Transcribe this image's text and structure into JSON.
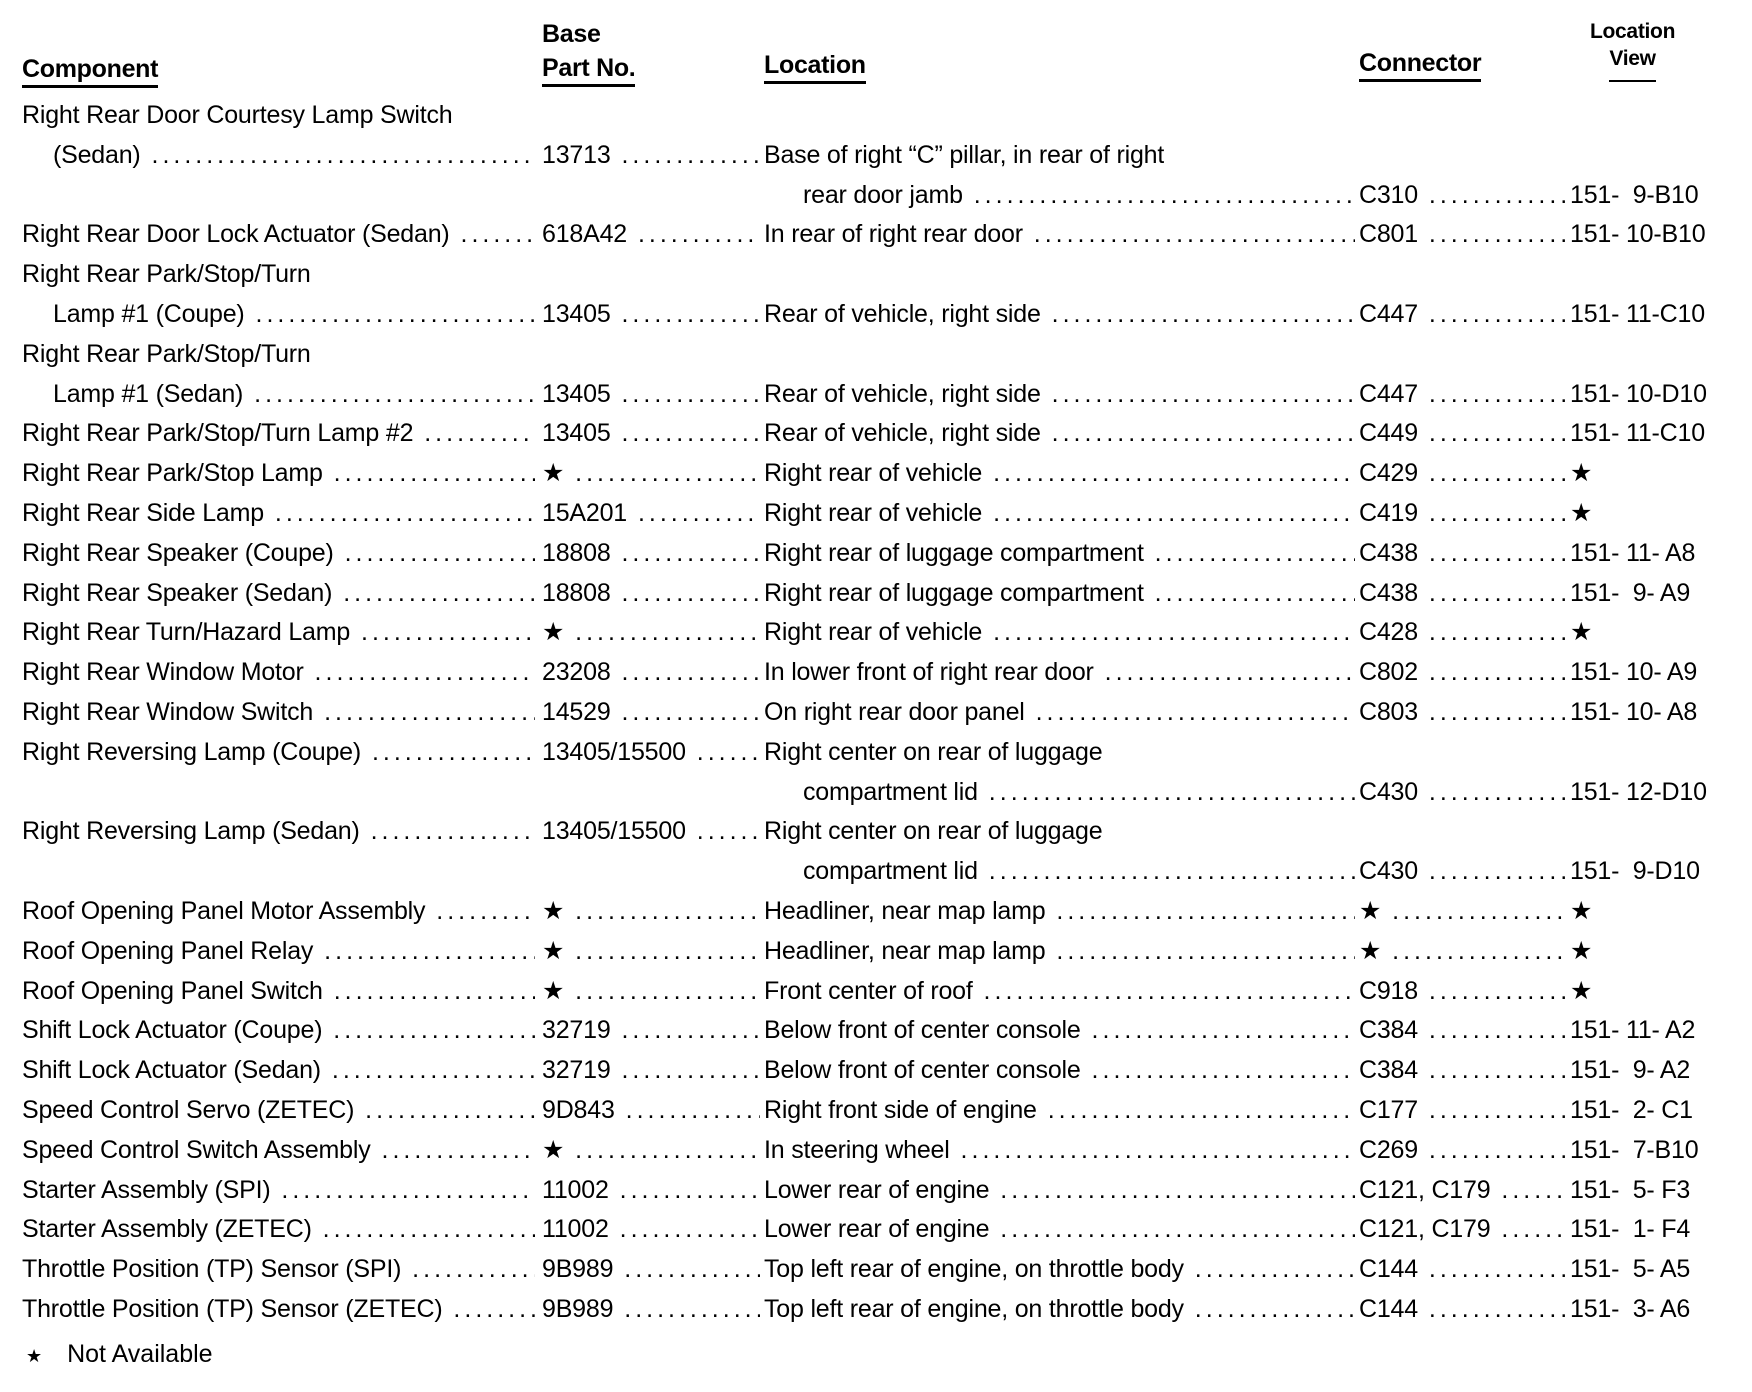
{
  "headers": {
    "component": "Component",
    "part_line1": "Base",
    "part_line2": "Part No.",
    "location": "Location",
    "connector": "Connector",
    "view_line1": "Location",
    "view_line2": "View"
  },
  "rows": [
    {
      "component": [
        "Right Rear Door Courtesy Lamp Switch",
        "(Sedan)"
      ],
      "part": "13713",
      "location": [
        "Base of right “C” pillar, in rear of right",
        "rear door jamb"
      ],
      "connector": "C310",
      "view": "151-  9-B10"
    },
    {
      "component": [
        "Right Rear Door Lock Actuator (Sedan)"
      ],
      "part": "618A42",
      "location": [
        "In rear of right rear door"
      ],
      "connector": "C801",
      "view": "151- 10-B10"
    },
    {
      "component": [
        "Right Rear Park/Stop/Turn",
        "Lamp #1 (Coupe)"
      ],
      "part": "13405",
      "location": [
        "Rear of vehicle, right side"
      ],
      "connector": "C447",
      "view": "151- 11-C10"
    },
    {
      "component": [
        "Right Rear Park/Stop/Turn",
        "Lamp #1 (Sedan)"
      ],
      "part": "13405",
      "location": [
        "Rear of vehicle, right side"
      ],
      "connector": "C447",
      "view": "151- 10-D10"
    },
    {
      "component": [
        "Right Rear Park/Stop/Turn Lamp #2"
      ],
      "part": "13405",
      "location": [
        "Rear of vehicle, right side"
      ],
      "connector": "C449",
      "view": "151- 11-C10"
    },
    {
      "component": [
        "Right Rear Park/Stop Lamp"
      ],
      "part": "★",
      "location": [
        "Right rear of vehicle"
      ],
      "connector": "C429",
      "view": "★"
    },
    {
      "component": [
        "Right Rear Side Lamp"
      ],
      "part": "15A201",
      "location": [
        "Right rear of vehicle"
      ],
      "connector": "C419",
      "view": "★"
    },
    {
      "component": [
        "Right Rear Speaker (Coupe)"
      ],
      "part": "18808",
      "location": [
        "Right rear of luggage compartment"
      ],
      "connector": "C438",
      "view": "151- 11- A8"
    },
    {
      "component": [
        "Right Rear Speaker (Sedan)"
      ],
      "part": "18808",
      "location": [
        "Right rear of luggage compartment"
      ],
      "connector": "C438",
      "view": "151-  9- A9"
    },
    {
      "component": [
        "Right Rear Turn/Hazard Lamp"
      ],
      "part": "★",
      "location": [
        "Right rear of vehicle"
      ],
      "connector": "C428",
      "view": "★"
    },
    {
      "component": [
        "Right Rear Window Motor"
      ],
      "part": "23208",
      "location": [
        "In lower front of right rear door"
      ],
      "connector": "C802",
      "view": "151- 10- A9"
    },
    {
      "component": [
        "Right Rear Window Switch"
      ],
      "part": "14529",
      "location": [
        "On right rear door panel"
      ],
      "connector": "C803",
      "view": "151- 10- A8"
    },
    {
      "component": [
        "Right Reversing Lamp (Coupe)"
      ],
      "part": "13405/15500",
      "location": [
        "Right center on rear of luggage",
        "compartment lid"
      ],
      "connector": "C430",
      "view": "151- 12-D10"
    },
    {
      "component": [
        "Right Reversing Lamp (Sedan)"
      ],
      "part": "13405/15500",
      "location": [
        "Right center on rear of luggage",
        "compartment lid"
      ],
      "connector": "C430",
      "view": "151-  9-D10"
    },
    {
      "component": [
        "Roof Opening Panel Motor Assembly"
      ],
      "part": "★",
      "location": [
        "Headliner, near map lamp"
      ],
      "connector": "★",
      "view": "★"
    },
    {
      "component": [
        "Roof Opening Panel Relay"
      ],
      "part": "★",
      "location": [
        "Headliner, near map lamp"
      ],
      "connector": "★",
      "view": "★"
    },
    {
      "component": [
        "Roof Opening Panel Switch"
      ],
      "part": "★",
      "location": [
        "Front center of roof"
      ],
      "connector": "C918",
      "view": "★"
    },
    {
      "component": [
        "Shift Lock Actuator (Coupe)"
      ],
      "part": "32719",
      "location": [
        "Below front of center console"
      ],
      "connector": "C384",
      "view": "151- 11- A2"
    },
    {
      "component": [
        "Shift Lock Actuator (Sedan)"
      ],
      "part": "32719",
      "location": [
        "Below front of center console"
      ],
      "connector": "C384",
      "view": "151-  9- A2"
    },
    {
      "component": [
        "Speed Control Servo (ZETEC)"
      ],
      "part": "9D843",
      "location": [
        "Right front side of engine"
      ],
      "connector": "C177",
      "view": "151-  2- C1"
    },
    {
      "component": [
        "Speed Control Switch Assembly"
      ],
      "part": "★",
      "location": [
        "In steering wheel"
      ],
      "connector": "C269",
      "view": "151-  7-B10"
    },
    {
      "component": [
        "Starter Assembly (SPI)"
      ],
      "part": "11002",
      "location": [
        "Lower rear of engine"
      ],
      "connector": "C121, C179",
      "view": "151-  5- F3"
    },
    {
      "component": [
        "Starter Assembly (ZETEC)"
      ],
      "part": "11002",
      "location": [
        "Lower rear of engine"
      ],
      "connector": "C121, C179",
      "view": "151-  1- F4"
    },
    {
      "component": [
        "Throttle Position (TP) Sensor (SPI)"
      ],
      "part": "9B989",
      "location": [
        "Top left rear of engine, on throttle body"
      ],
      "connector": "C144",
      "view": "151-  5- A5"
    },
    {
      "component": [
        "Throttle Position (TP) Sensor (ZETEC)"
      ],
      "part": "9B989",
      "location": [
        "Top left rear of engine, on throttle body"
      ],
      "connector": "C144",
      "view": "151-  3- A6"
    }
  ],
  "footnote": {
    "symbol": "★",
    "text": "Not Available"
  }
}
